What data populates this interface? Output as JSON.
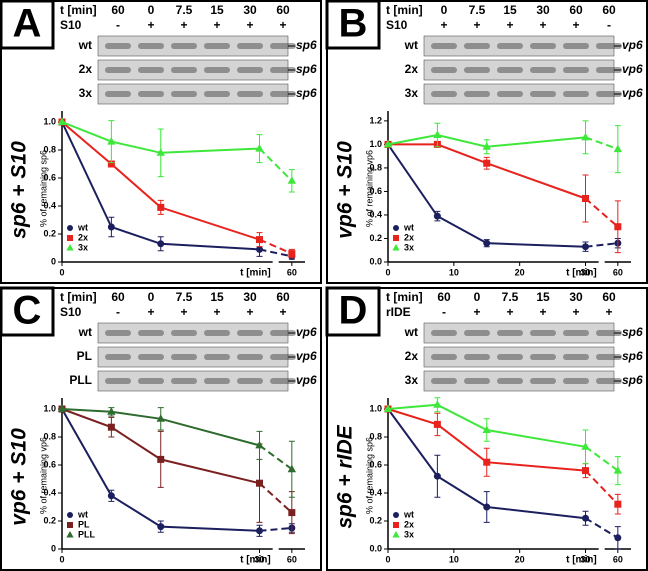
{
  "chart_data": [
    {
      "type": "line",
      "panel": "A",
      "title": "sp6 + S10",
      "header": {
        "time_label": "t [min]",
        "times": [
          "60",
          "0",
          "7.5",
          "15",
          "30",
          "60"
        ],
        "treatment_label": "S10",
        "treatment": [
          "-",
          "+",
          "+",
          "+",
          "+",
          "+"
        ]
      },
      "blot_rows": [
        {
          "name": "wt",
          "target": "sp6"
        },
        {
          "name": "2x",
          "target": "sp6"
        },
        {
          "name": "3x",
          "target": "sp6"
        }
      ],
      "y_label": "% of remaining sp6",
      "x_label": "t [min]",
      "x": [
        0,
        7.5,
        15,
        30,
        60
      ],
      "xlim": [
        0,
        62
      ],
      "x_break": [
        32,
        58
      ],
      "xticks": [
        0,
        60
      ],
      "ylim": [
        0,
        1.05
      ],
      "yticks": [
        0,
        0.2,
        0.4,
        0.6,
        0.8,
        {
          "value": 1,
          "label": "1.0"
        }
      ],
      "series": [
        {
          "name": "wt",
          "color": "#1c1f5e",
          "marker": "circle",
          "values": [
            1,
            0.25,
            0.13,
            0.09,
            0.04
          ],
          "errors": [
            0,
            0.07,
            0.05,
            0.05,
            0.02
          ]
        },
        {
          "name": "2x",
          "color": "#e8221d",
          "marker": "square",
          "values": [
            1,
            0.7,
            0.39,
            0.16,
            0.06
          ],
          "errors": [
            0,
            0.02,
            0.05,
            0.05,
            0.03
          ]
        },
        {
          "name": "3x",
          "color": "#3de83a",
          "marker": "triangle",
          "values": [
            1,
            0.86,
            0.78,
            0.81,
            0.58
          ],
          "errors": [
            0,
            0.15,
            0.17,
            0.1,
            0.08
          ]
        }
      ]
    },
    {
      "type": "line",
      "panel": "B",
      "title": "vp6 + S10",
      "header": {
        "time_label": "t [min]",
        "times": [
          "0",
          "7.5",
          "15",
          "30",
          "60",
          "60"
        ],
        "treatment_label": "S10",
        "treatment": [
          "+",
          "+",
          "+",
          "+",
          "+",
          "-"
        ]
      },
      "blot_rows": [
        {
          "name": "wt",
          "target": "vp6"
        },
        {
          "name": "2x",
          "target": "vp6"
        },
        {
          "name": "3x",
          "target": "vp6"
        }
      ],
      "y_label": "% of remaining vp6",
      "x_label": "t [min]",
      "x": [
        0,
        7.5,
        15,
        30,
        60
      ],
      "xlim": [
        0,
        62
      ],
      "x_break": [
        32,
        58
      ],
      "xticks": [
        0,
        10,
        20,
        30,
        60
      ],
      "ylim": [
        0,
        1.25
      ],
      "yticks": [
        {
          "value": 0,
          "label": "0.0"
        },
        0.2,
        0.4,
        0.6,
        0.8,
        {
          "value": 1,
          "label": "1.0"
        },
        1.2
      ],
      "series": [
        {
          "name": "wt",
          "color": "#1c1f5e",
          "marker": "circle",
          "values": [
            1,
            0.39,
            0.16,
            0.13,
            0.16
          ],
          "errors": [
            0,
            0.04,
            0.03,
            0.04,
            0.04
          ]
        },
        {
          "name": "2x",
          "color": "#e8221d",
          "marker": "square",
          "values": [
            1,
            1.0,
            0.84,
            0.54,
            0.3
          ],
          "errors": [
            0,
            0.01,
            0.05,
            0.2,
            0.22
          ]
        },
        {
          "name": "3x",
          "color": "#3de83a",
          "marker": "triangle",
          "values": [
            1,
            1.08,
            0.98,
            1.06,
            0.96
          ],
          "errors": [
            0,
            0.1,
            0.06,
            0.14,
            0.2
          ]
        }
      ]
    },
    {
      "type": "line",
      "panel": "C",
      "title": "vp6 + S10",
      "header": {
        "time_label": "t [min]",
        "times": [
          "60",
          "0",
          "7.5",
          "15",
          "30",
          "60"
        ],
        "treatment_label": "S10",
        "treatment": [
          "-",
          "+",
          "+",
          "+",
          "+",
          "+"
        ]
      },
      "blot_rows": [
        {
          "name": "wt",
          "target": "vp6"
        },
        {
          "name": "PL",
          "target": "vp6"
        },
        {
          "name": "PLL",
          "target": "vp6"
        }
      ],
      "y_label": "% of remaining vp6",
      "x_label": "t [min]",
      "x": [
        0,
        7.5,
        15,
        30,
        60
      ],
      "xlim": [
        0,
        62
      ],
      "x_break": [
        32,
        58
      ],
      "xticks": [
        0,
        30,
        60
      ],
      "ylim": [
        0,
        1.05
      ],
      "yticks": [
        0,
        0.2,
        0.4,
        0.6,
        0.8,
        {
          "value": 1,
          "label": "1.0"
        }
      ],
      "series": [
        {
          "name": "wt",
          "color": "#1c1f5e",
          "marker": "circle",
          "values": [
            1,
            0.38,
            0.16,
            0.13,
            0.15
          ],
          "errors": [
            0,
            0.04,
            0.04,
            0.04,
            0.03
          ]
        },
        {
          "name": "PL",
          "color": "#7b2020",
          "marker": "square",
          "values": [
            1,
            0.87,
            0.64,
            0.47,
            0.26
          ],
          "errors": [
            0,
            0.07,
            0.2,
            0.28,
            0.15
          ]
        },
        {
          "name": "PLL",
          "color": "#2e6b2e",
          "marker": "triangle",
          "values": [
            1,
            0.98,
            0.93,
            0.74,
            0.57
          ],
          "errors": [
            0,
            0.03,
            0.08,
            0.1,
            0.2
          ]
        }
      ]
    },
    {
      "type": "line",
      "panel": "D",
      "title": "sp6 + rIDE",
      "header": {
        "time_label": "t [min]",
        "times": [
          "60",
          "0",
          "7.5",
          "15",
          "30",
          "60"
        ],
        "treatment_label": "rIDE",
        "treatment": [
          "-",
          "+",
          "+",
          "+",
          "+",
          "+"
        ]
      },
      "blot_rows": [
        {
          "name": "wt",
          "target": "sp6"
        },
        {
          "name": "2x",
          "target": "sp6"
        },
        {
          "name": "3x",
          "target": "sp6"
        }
      ],
      "y_label": "% of remaining sp6",
      "x_label": "t [min]",
      "x": [
        0,
        7.5,
        15,
        30,
        60
      ],
      "xlim": [
        0,
        62
      ],
      "x_break": [
        32,
        58
      ],
      "xticks": [
        0,
        10,
        20,
        30,
        60
      ],
      "ylim": [
        0,
        1.05
      ],
      "yticks": [
        {
          "value": 0,
          "label": "0.0"
        },
        0.2,
        0.4,
        0.6,
        0.8,
        {
          "value": 1,
          "label": "1.0"
        }
      ],
      "series": [
        {
          "name": "wt",
          "color": "#1c1f5e",
          "marker": "circle",
          "values": [
            1,
            0.52,
            0.3,
            0.22,
            0.08
          ],
          "errors": [
            0,
            0.15,
            0.11,
            0.05,
            0.08
          ]
        },
        {
          "name": "2x",
          "color": "#e8221d",
          "marker": "square",
          "values": [
            1,
            0.89,
            0.62,
            0.56,
            0.32
          ],
          "errors": [
            0,
            0.08,
            0.1,
            0.05,
            0.07
          ]
        },
        {
          "name": "3x",
          "color": "#3de83a",
          "marker": "triangle",
          "values": [
            1,
            1.03,
            0.85,
            0.73,
            0.56
          ],
          "errors": [
            0,
            0.05,
            0.08,
            0.12,
            0.1
          ]
        }
      ]
    }
  ]
}
